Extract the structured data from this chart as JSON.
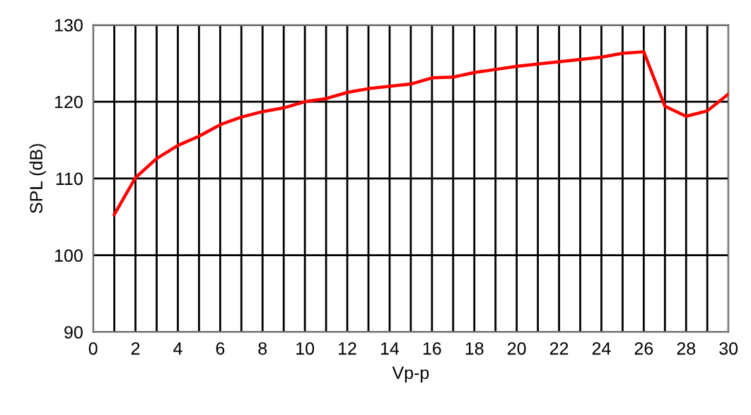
{
  "chart_data": {
    "type": "line",
    "xlabel": "Vp-p",
    "ylabel": "SPL (dB)",
    "x": [
      1,
      2,
      3,
      4,
      5,
      6,
      7,
      8,
      9,
      10,
      11,
      12,
      13,
      14,
      15,
      16,
      17,
      18,
      19,
      20,
      21,
      22,
      23,
      24,
      25,
      26,
      27,
      28,
      29,
      30
    ],
    "series": [
      {
        "color": "#ff0000",
        "values": [
          105.3,
          110.1,
          112.6,
          114.3,
          115.5,
          117.0,
          118.0,
          118.7,
          119.2,
          120.0,
          120.4,
          121.2,
          121.7,
          122.0,
          122.3,
          123.1,
          123.2,
          123.8,
          124.2,
          124.6,
          124.9,
          125.2,
          125.5,
          125.8,
          126.3,
          126.5,
          119.4,
          118.1,
          118.8,
          121.0
        ]
      }
    ],
    "xlim": [
      0,
      30
    ],
    "ylim": [
      90,
      130
    ],
    "xticks": [
      0,
      {
        "value": 1,
        "label": null
      },
      2,
      {
        "value": 3,
        "label": null
      },
      4,
      {
        "value": 5,
        "label": null
      },
      6,
      {
        "value": 7,
        "label": null
      },
      8,
      {
        "value": 9,
        "label": null
      },
      10,
      {
        "value": 11,
        "label": null
      },
      12,
      {
        "value": 13,
        "label": null
      },
      14,
      {
        "value": 15,
        "label": null
      },
      16,
      {
        "value": 17,
        "label": null
      },
      18,
      {
        "value": 19,
        "label": null
      },
      20,
      {
        "value": 21,
        "label": null
      },
      22,
      {
        "value": 23,
        "label": null
      },
      24,
      {
        "value": 25,
        "label": null
      },
      26,
      {
        "value": 27,
        "label": null
      },
      28,
      {
        "value": 29,
        "label": null
      },
      30
    ],
    "yticks": [
      90,
      100,
      110,
      120,
      130
    ],
    "grid": true,
    "marker": "none",
    "line_style": "solid"
  }
}
